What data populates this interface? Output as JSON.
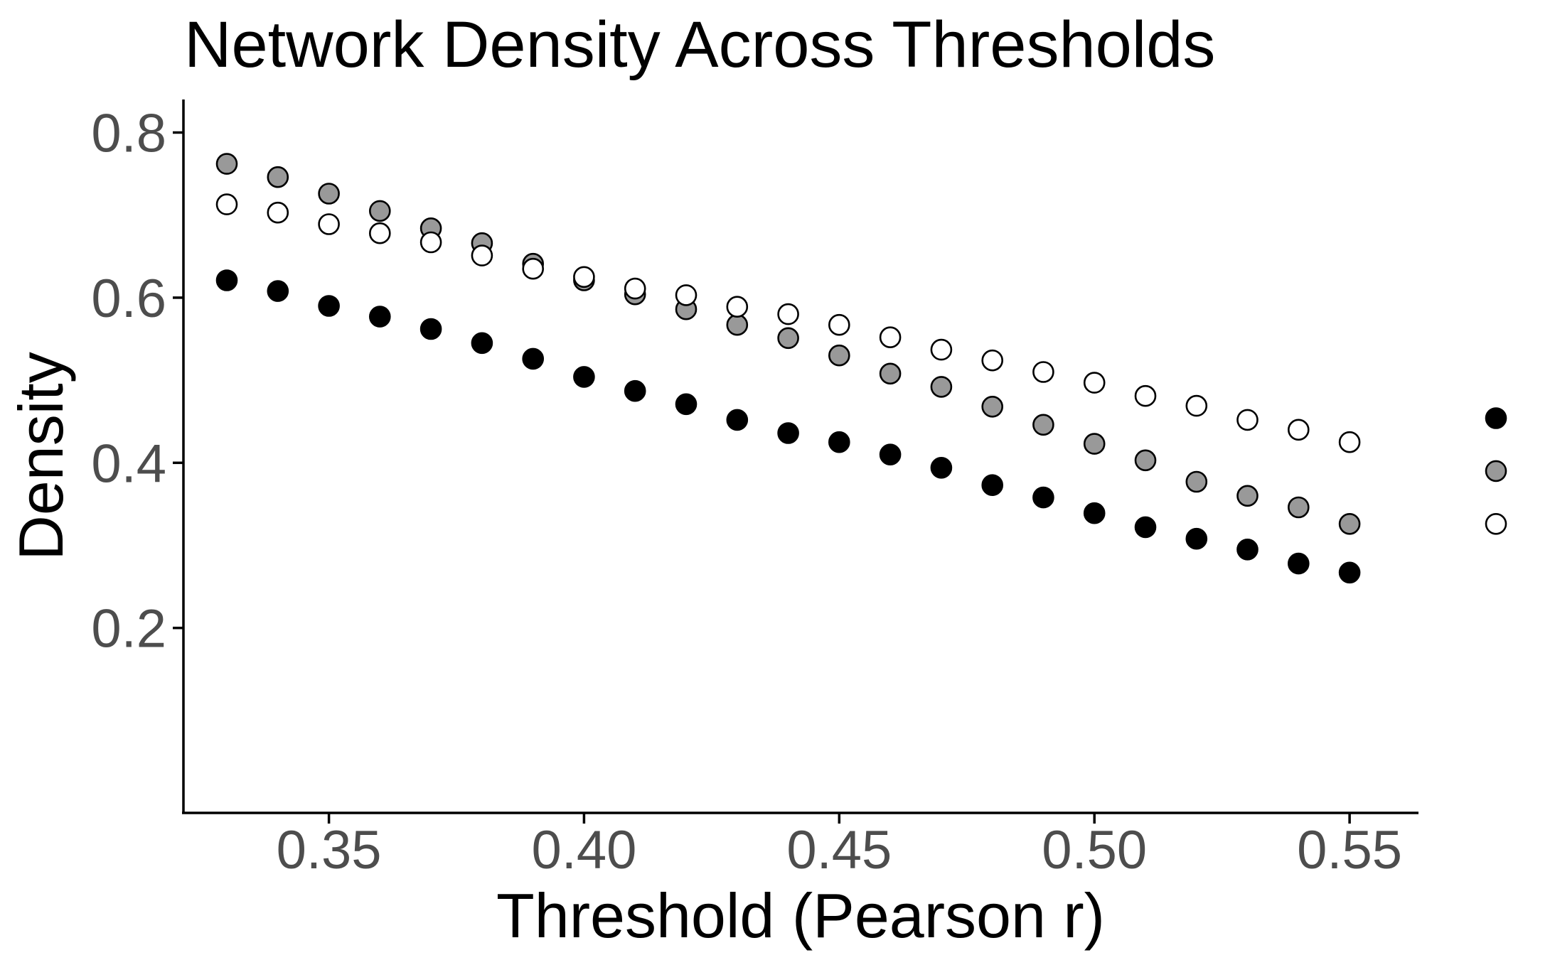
{
  "chart_data": {
    "type": "scatter",
    "title": "Network Density Across Thresholds",
    "xlabel": "Threshold (Pearson r)",
    "ylabel": "Density",
    "xlim": [
      0.3215,
      0.5635
    ],
    "ylim": [
      -0.024,
      0.84
    ],
    "x_ticks": [
      0.35,
      0.4,
      0.45,
      0.5,
      0.55
    ],
    "x_tick_labels": [
      "0.35",
      "0.40",
      "0.45",
      "0.50",
      "0.55"
    ],
    "y_ticks": [
      0.2,
      0.4,
      0.6,
      0.8
    ],
    "y_tick_labels": [
      "0.2",
      "0.4",
      "0.6",
      "0.8"
    ],
    "grid": false,
    "legend": "none",
    "x": [
      0.33,
      0.34,
      0.35,
      0.36,
      0.37,
      0.38,
      0.39,
      0.4,
      0.41,
      0.42,
      0.43,
      0.44,
      0.45,
      0.46,
      0.47,
      0.48,
      0.49,
      0.5,
      0.51,
      0.52,
      0.53,
      0.54,
      0.55
    ],
    "series": [
      {
        "fill": "#999999",
        "values": [
          0.762,
          0.746,
          0.726,
          0.705,
          0.684,
          0.666,
          0.641,
          0.621,
          0.604,
          0.586,
          0.567,
          0.551,
          0.53,
          0.508,
          0.492,
          0.468,
          0.446,
          0.423,
          0.403,
          0.377,
          0.36,
          0.346,
          0.326
        ]
      },
      {
        "fill": "#ffffff",
        "values": [
          0.713,
          0.703,
          0.689,
          0.678,
          0.667,
          0.651,
          0.635,
          0.625,
          0.611,
          0.603,
          0.589,
          0.58,
          0.567,
          0.552,
          0.537,
          0.524,
          0.51,
          0.497,
          0.481,
          0.469,
          0.452,
          0.44,
          0.425
        ]
      },
      {
        "fill": "#000000",
        "values": [
          0.621,
          0.608,
          0.59,
          0.577,
          0.562,
          0.545,
          0.526,
          0.504,
          0.487,
          0.471,
          0.452,
          0.436,
          0.425,
          0.41,
          0.394,
          0.373,
          0.358,
          0.339,
          0.322,
          0.308,
          0.295,
          0.278,
          0.267
        ]
      }
    ],
    "legend_keys": [
      {
        "fill": "#000000",
        "value": 0.454
      },
      {
        "fill": "#999999",
        "value": 0.39
      },
      {
        "fill": "#ffffff",
        "value": 0.326
      }
    ]
  }
}
